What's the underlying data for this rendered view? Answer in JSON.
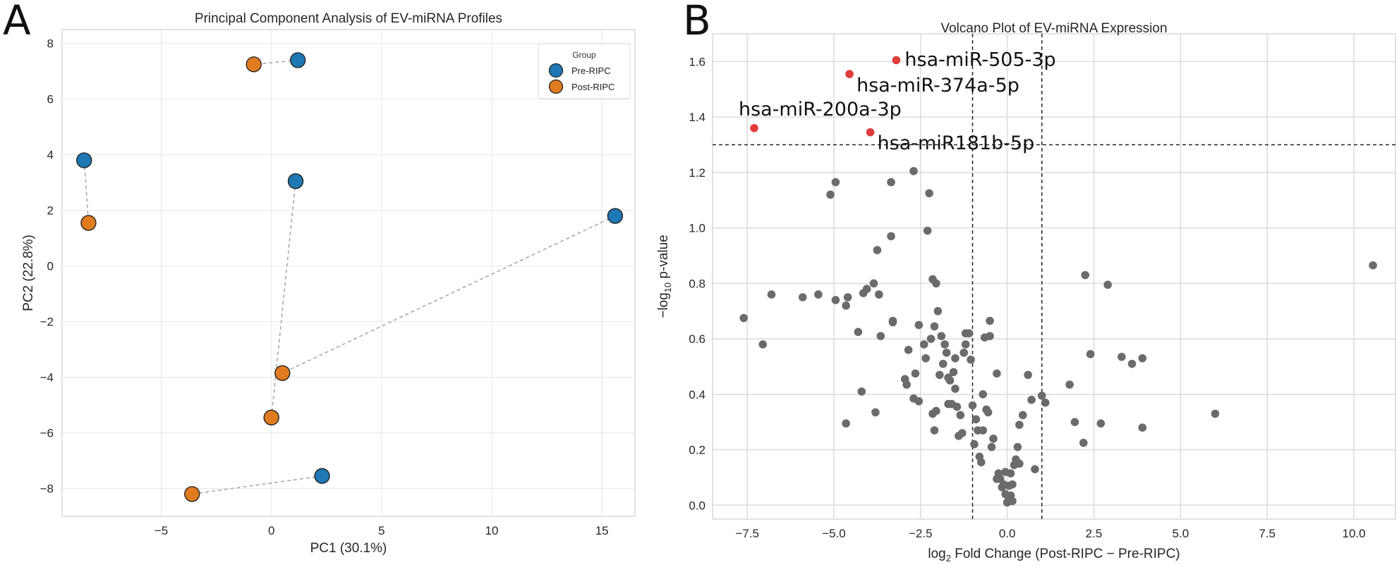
{
  "panels": {
    "a": "A",
    "b": "B"
  },
  "chart_data": [
    {
      "type": "scatter",
      "title": "Principal Component Analysis of EV-miRNA Profiles",
      "xlabel": "PC1 (30.1%)",
      "ylabel": "PC2 (22.8%)",
      "xlim": [
        -9.5,
        16.5
      ],
      "ylim": [
        -9,
        8.5
      ],
      "xticks": [
        -5,
        0,
        5,
        10,
        15
      ],
      "xtick_labels": [
        "−5",
        "0",
        "5",
        "10",
        "15"
      ],
      "yticks": [
        -8,
        -6,
        -4,
        -2,
        0,
        2,
        4,
        6,
        8
      ],
      "ytick_labels": [
        "−8",
        "−6",
        "−4",
        "−2",
        "0",
        "2",
        "4",
        "6",
        "8"
      ],
      "grid": true,
      "legend": {
        "title": "Group",
        "placement": "top-right"
      },
      "series": [
        {
          "name": "Pre-RIPC",
          "color": "#1f77b4",
          "points": [
            [
              1.2,
              7.4
            ],
            [
              -8.5,
              3.8
            ],
            [
              1.1,
              3.05
            ],
            [
              15.6,
              1.8
            ],
            [
              2.3,
              -7.55
            ]
          ]
        },
        {
          "name": "Post-RIPC",
          "color": "#e07b1f",
          "points": [
            [
              -0.8,
              7.25
            ],
            [
              -8.3,
              1.55
            ],
            [
              0.5,
              -3.85
            ],
            [
              0.0,
              -5.45
            ],
            [
              -3.6,
              -8.2
            ]
          ]
        }
      ],
      "pairs": [
        [
          [
            1.2,
            7.4
          ],
          [
            -0.8,
            7.25
          ]
        ],
        [
          [
            -8.5,
            3.8
          ],
          [
            -8.3,
            1.55
          ]
        ],
        [
          [
            1.1,
            3.05
          ],
          [
            0.0,
            -5.45
          ]
        ],
        [
          [
            15.6,
            1.8
          ],
          [
            0.5,
            -3.85
          ]
        ],
        [
          [
            2.3,
            -7.55
          ],
          [
            -3.6,
            -8.2
          ]
        ]
      ]
    },
    {
      "type": "scatter",
      "title": "Volcano Plot of EV-miRNA Expression",
      "xlabel_prefix": "log",
      "xlabel_sub": "2",
      "xlabel_rest": " Fold Change (Post-RIPC − Pre-RIPC)",
      "ylabel_prefix": "−log",
      "ylabel_sub": "10",
      "ylabel_rest": " p-value",
      "xlim": [
        -8.5,
        11.2
      ],
      "ylim": [
        -0.05,
        1.7
      ],
      "xticks": [
        -7.5,
        -5,
        -2.5,
        0,
        2.5,
        5,
        7.5,
        10
      ],
      "xtick_labels": [
        "−7.5",
        "−5.0",
        "−2.5",
        "0.0",
        "2.5",
        "5.0",
        "7.5",
        "10.0"
      ],
      "yticks": [
        0,
        0.2,
        0.4,
        0.6,
        0.8,
        1.0,
        1.2,
        1.4,
        1.6
      ],
      "ytick_labels": [
        "0.0",
        "0.2",
        "0.4",
        "0.6",
        "0.8",
        "1.0",
        "1.2",
        "1.4",
        "1.6"
      ],
      "grid": true,
      "thresholds": {
        "vertical": [
          -1,
          1
        ],
        "horizontal": 1.3
      },
      "colors": {
        "significant": "#e03c3c",
        "nonsignificant": "#6b6b6b"
      },
      "significant": [
        {
          "label": "hsa-miR-505-3p",
          "x": -3.2,
          "y": 1.605
        },
        {
          "label": "hsa-miR-374a-5p",
          "x": -4.55,
          "y": 1.555
        },
        {
          "label": "hsa-miR-200a-3p",
          "x": -7.3,
          "y": 1.36
        },
        {
          "label": "hsa-miR181b-5p",
          "x": -3.95,
          "y": 1.345
        }
      ],
      "points": [
        [
          -7.6,
          0.675
        ],
        [
          -7.05,
          0.58
        ],
        [
          -6.8,
          0.76
        ],
        [
          -5.9,
          0.75
        ],
        [
          -5.45,
          0.76
        ],
        [
          -5.1,
          1.12
        ],
        [
          -4.95,
          1.165
        ],
        [
          -4.95,
          0.74
        ],
        [
          -4.65,
          0.72
        ],
        [
          -4.65,
          0.295
        ],
        [
          -4.6,
          0.75
        ],
        [
          -4.3,
          0.625
        ],
        [
          -4.2,
          0.41
        ],
        [
          -4.15,
          0.765
        ],
        [
          -4.05,
          0.78
        ],
        [
          -3.85,
          0.8
        ],
        [
          -3.8,
          0.335
        ],
        [
          -3.75,
          0.92
        ],
        [
          -3.7,
          0.76
        ],
        [
          -3.65,
          0.61
        ],
        [
          -3.35,
          1.165
        ],
        [
          -3.35,
          0.97
        ],
        [
          -3.3,
          0.66
        ],
        [
          -3.3,
          0.665
        ],
        [
          -2.95,
          0.455
        ],
        [
          -2.9,
          0.435
        ],
        [
          -2.85,
          0.56
        ],
        [
          -2.7,
          1.205
        ],
        [
          -2.65,
          0.475
        ],
        [
          -2.7,
          0.385
        ],
        [
          -2.55,
          0.65
        ],
        [
          -2.55,
          0.375
        ],
        [
          -2.4,
          0.58
        ],
        [
          -2.35,
          0.53
        ],
        [
          -2.3,
          0.99
        ],
        [
          -2.25,
          1.125
        ],
        [
          -2.2,
          0.6
        ],
        [
          -2.15,
          0.815
        ],
        [
          -2.1,
          0.645
        ],
        [
          -2.15,
          0.33
        ],
        [
          -2.1,
          0.27
        ],
        [
          -2.05,
          0.8
        ],
        [
          -2.05,
          0.34
        ],
        [
          -2.0,
          0.7
        ],
        [
          -1.95,
          0.47
        ],
        [
          -1.9,
          0.61
        ],
        [
          -1.85,
          0.51
        ],
        [
          -1.8,
          0.58
        ],
        [
          -1.75,
          0.55
        ],
        [
          -1.7,
          0.365
        ],
        [
          -1.7,
          0.46
        ],
        [
          -1.65,
          0.45
        ],
        [
          -1.6,
          0.365
        ],
        [
          -1.55,
          0.48
        ],
        [
          -1.5,
          0.42
        ],
        [
          -1.5,
          0.53
        ],
        [
          -1.45,
          0.355
        ],
        [
          -1.4,
          0.25
        ],
        [
          -1.35,
          0.325
        ],
        [
          -1.3,
          0.26
        ],
        [
          -1.25,
          0.55
        ],
        [
          -1.2,
          0.62
        ],
        [
          -1.2,
          0.58
        ],
        [
          -1.1,
          0.62
        ],
        [
          -1.05,
          0.525
        ],
        [
          -1.0,
          0.36
        ],
        [
          -0.95,
          0.22
        ],
        [
          -0.9,
          0.31
        ],
        [
          -0.85,
          0.27
        ],
        [
          -0.8,
          0.175
        ],
        [
          -0.75,
          0.155
        ],
        [
          -0.7,
          0.4
        ],
        [
          -0.7,
          0.27
        ],
        [
          -0.65,
          0.605
        ],
        [
          -0.6,
          0.345
        ],
        [
          -0.55,
          0.335
        ],
        [
          -0.5,
          0.61
        ],
        [
          -0.5,
          0.665
        ],
        [
          -0.45,
          0.21
        ],
        [
          -0.4,
          0.24
        ],
        [
          -0.3,
          0.475
        ],
        [
          -0.25,
          0.115
        ],
        [
          -0.2,
          0.095
        ],
        [
          -0.15,
          0.065
        ],
        [
          -0.1,
          0.075
        ],
        [
          -0.05,
          0.04
        ],
        [
          -0.05,
          0.12
        ],
        [
          0.0,
          0.01
        ],
        [
          0.05,
          0.025
        ],
        [
          0.05,
          0.07
        ],
        [
          0.1,
          0.115
        ],
        [
          0.1,
          0.035
        ],
        [
          0.15,
          0.075
        ],
        [
          0.15,
          0.015
        ],
        [
          0.2,
          0.145
        ],
        [
          0.25,
          0.165
        ],
        [
          0.3,
          0.21
        ],
        [
          0.35,
          0.15
        ],
        [
          0.35,
          0.29
        ],
        [
          0.45,
          0.325
        ],
        [
          -0.3,
          0.095
        ],
        [
          0.6,
          0.47
        ],
        [
          0.7,
          0.38
        ],
        [
          0.8,
          0.13
        ],
        [
          1.0,
          0.395
        ],
        [
          1.1,
          0.37
        ],
        [
          1.8,
          0.435
        ],
        [
          1.95,
          0.3
        ],
        [
          2.2,
          0.225
        ],
        [
          2.25,
          0.83
        ],
        [
          2.4,
          0.545
        ],
        [
          2.7,
          0.295
        ],
        [
          2.9,
          0.795
        ],
        [
          3.3,
          0.535
        ],
        [
          3.6,
          0.51
        ],
        [
          3.9,
          0.53
        ],
        [
          3.9,
          0.28
        ],
        [
          6.0,
          0.33
        ],
        [
          10.55,
          0.865
        ]
      ]
    }
  ]
}
